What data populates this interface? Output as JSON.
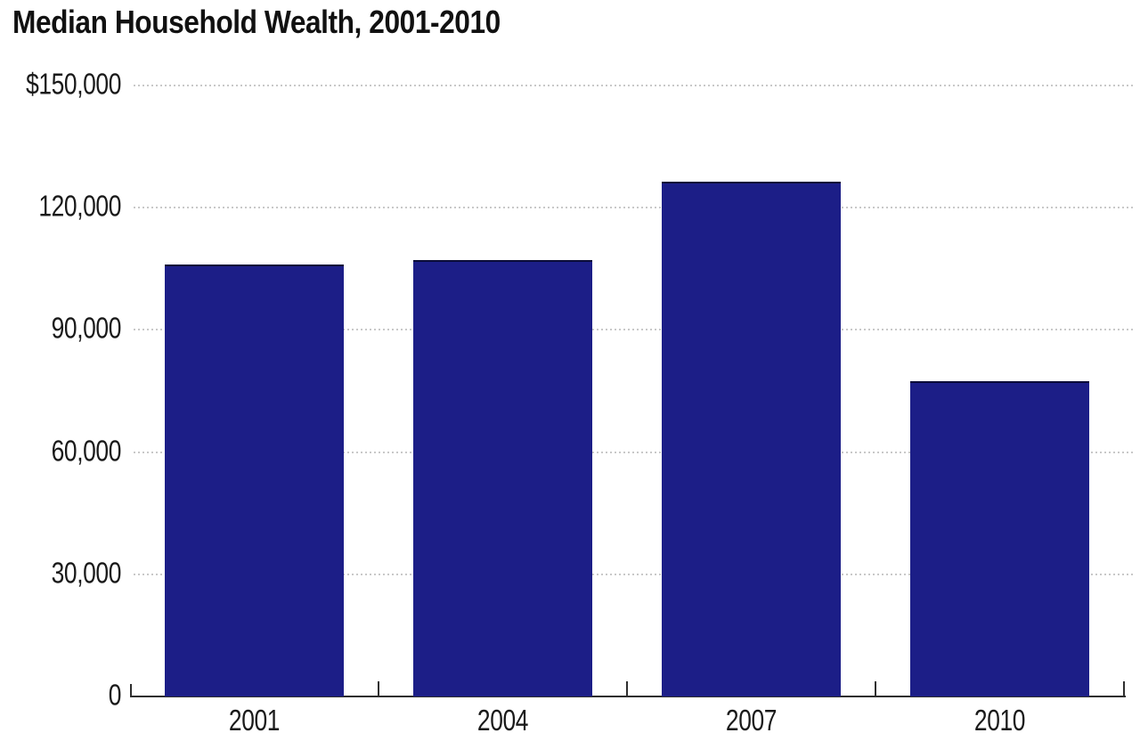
{
  "page": {
    "background_color": "#ffffff"
  },
  "chart_data": {
    "type": "bar",
    "title": "Median Household Wealth, 2001-2010",
    "categories": [
      "2001",
      "2004",
      "2007",
      "2010"
    ],
    "values": [
      106100,
      107200,
      126400,
      77300
    ],
    "xlabel": "",
    "ylabel": "",
    "ylim": [
      0,
      150000
    ],
    "y_ticks": [
      {
        "value": 150000,
        "label": "$150,000"
      },
      {
        "value": 120000,
        "label": "120,000"
      },
      {
        "value": 90000,
        "label": "90,000"
      },
      {
        "value": 60000,
        "label": "60,000"
      },
      {
        "value": 30000,
        "label": "30,000"
      },
      {
        "value": 0,
        "label": "0"
      }
    ],
    "grid": "horizontal dotted, on",
    "legend": "none",
    "colors": {
      "bar_fill": "#1c1e87",
      "bar_top_edge": "#0b0c38",
      "gridline": "#c8c8c8",
      "axis": "#2e2e2e",
      "text": "#1a1a1a",
      "title_text": "#111111",
      "background": "#ffffff"
    }
  }
}
